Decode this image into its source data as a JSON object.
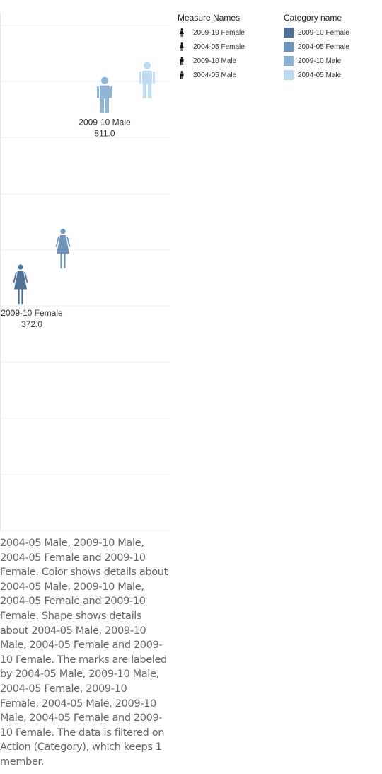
{
  "chart_data": {
    "type": "scatter",
    "title": "",
    "xlabel": "",
    "ylabel": "",
    "marks": [
      {
        "measure": "2009-10 Female",
        "value": 372.0,
        "color": "#4f7195",
        "shape": "female-icon",
        "label": "2009-10 Female",
        "value_label": "372.0"
      },
      {
        "measure": "2004-05 Female",
        "value": 454,
        "color": "#6f92b8",
        "shape": "female-icon",
        "label": "",
        "value_label": ""
      },
      {
        "measure": "2009-10 Male",
        "value": 811.0,
        "color": "#8fb5d7",
        "shape": "male-icon",
        "label": "2009-10 Male",
        "value_label": "811.0"
      },
      {
        "measure": "2004-05 Male",
        "value": 845,
        "color": "#bddcef",
        "shape": "male-icon",
        "label": "",
        "value_label": ""
      }
    ],
    "grid": true,
    "legend_placement": "right"
  },
  "legend_shape": {
    "title": "Measure Names",
    "items": [
      {
        "label": "2009-10 Female",
        "icon": "female-icon"
      },
      {
        "label": "2004-05 Female",
        "icon": "female-icon"
      },
      {
        "label": "2009-10 Male",
        "icon": "male-icon"
      },
      {
        "label": "2004-05 Male",
        "icon": "male-icon"
      }
    ]
  },
  "legend_color": {
    "title": "Category name",
    "items": [
      {
        "label": "2009-10 Female",
        "color": "#4e6e93"
      },
      {
        "label": "2004-05 Female",
        "color": "#6e93bd"
      },
      {
        "label": "2009-10 Male",
        "color": "#8db4d8"
      },
      {
        "label": "2004-05 Male",
        "color": "#bcdcf0"
      }
    ]
  },
  "caption": "2004-05 Male, 2009-10 Male, 2004-05 Female and 2009-10 Female.  Color shows details about 2004-05 Male, 2009-10 Male, 2004-05 Female and 2009-10 Female.  Shape shows details about 2004-05 Male, 2009-10 Male, 2004-05 Female and 2009-10 Female.  The marks are labeled by 2004-05 Male, 2009-10 Male, 2004-05 Female, 2009-10 Female, 2004-05 Male, 2009-10 Male, 2004-05 Female and 2009-10 Female. The data is filtered on Action (Category), which keeps 1 member."
}
